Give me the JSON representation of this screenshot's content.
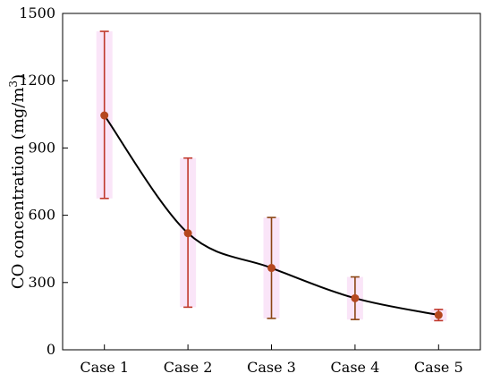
{
  "chart_data": {
    "type": "line",
    "categories": [
      "Case 1",
      "Case 2",
      "Case 3",
      "Case 4",
      "Case 5"
    ],
    "series": [
      {
        "values": [
          1045,
          520,
          365,
          230,
          155
        ],
        "error_low": [
          675,
          190,
          140,
          135,
          130
        ],
        "error_high": [
          1420,
          855,
          590,
          325,
          180
        ]
      }
    ],
    "ylabel_main": "CO concentration (mg/m",
    "ylabel_sup": "3",
    "ylabel_close": ")",
    "xlabel": "",
    "title": "",
    "ylim": [
      0,
      1500
    ],
    "yticks": [
      0,
      300,
      600,
      900,
      1200,
      1500
    ],
    "grid": false,
    "legend": "none",
    "colors": {
      "line": "#000000",
      "marker": "#b5471f",
      "error_bar": "#c0392b",
      "error_bar_alt": "#8b4513",
      "shade": "#f3c6f0",
      "axis": "#000000"
    }
  }
}
